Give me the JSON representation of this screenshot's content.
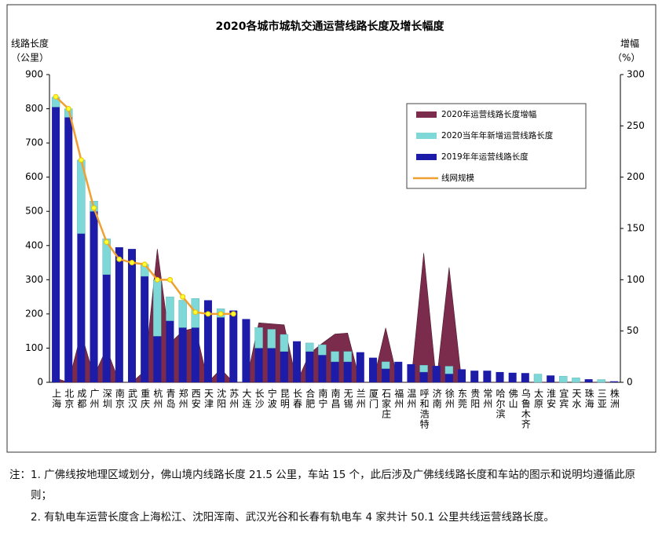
{
  "chart_data": {
    "type": "bar",
    "title": "2020各城市城轨交通运营线路长度及增长幅度",
    "ylabel": [
      "线路长度",
      "（公里）"
    ],
    "y2label": [
      "增幅",
      "（%）"
    ],
    "categories": [
      "上海",
      "北京",
      "成都",
      "广州",
      "深圳",
      "南京",
      "武汉",
      "重庆",
      "杭州",
      "青岛",
      "郑州",
      "西安",
      "天津",
      "沈阳",
      "苏州",
      "大连",
      "长沙",
      "宁波",
      "昆明",
      "长春",
      "合肥",
      "南宁",
      "南昌",
      "无锡",
      "兰州",
      "厦门",
      "石家庄",
      "福州",
      "温州",
      "呼和浩特",
      "济南",
      "徐州",
      "东莞",
      "贵阳",
      "常州",
      "哈尔滨",
      "佛山",
      "乌鲁木齐",
      "太原",
      "淮安",
      "宜宾",
      "天水",
      "珠海",
      "三亚",
      "株洲"
    ],
    "ylim": [
      0,
      900
    ],
    "yticks": [
      0,
      100,
      200,
      300,
      400,
      500,
      600,
      700,
      800,
      900
    ],
    "y2lim": [
      0,
      300
    ],
    "y2ticks": [
      0,
      50,
      100,
      150,
      200,
      250,
      300
    ],
    "series": [
      {
        "name": "2020年运营线路长度增幅",
        "type": "area",
        "axis": "y2",
        "color": "#7b2b4c",
        "values": [
          4,
          0,
          48,
          6,
          33,
          0,
          0,
          11,
          130,
          38,
          50,
          53,
          0,
          13,
          0,
          0,
          58,
          57,
          56,
          0,
          28,
          38,
          47,
          48,
          0,
          0,
          53,
          0,
          0,
          126,
          0,
          112,
          0,
          0,
          0,
          0,
          0,
          0,
          0,
          0,
          0,
          0,
          0,
          0,
          0
        ]
      },
      {
        "name": "2020当年年新增运营线路长度",
        "type": "stack",
        "color": "#7fd8d8",
        "values": [
          29,
          25,
          215,
          30,
          105,
          0,
          0,
          35,
          165,
          70,
          80,
          85,
          0,
          25,
          0,
          0,
          60,
          55,
          50,
          0,
          25,
          30,
          30,
          30,
          0,
          0,
          20,
          0,
          0,
          20,
          0,
          22,
          0,
          0,
          0,
          0,
          0,
          0,
          24,
          0,
          18,
          13,
          0,
          8,
          0
        ]
      },
      {
        "name": "2019年年运营线路长度",
        "type": "bar",
        "color": "#1c1ca8",
        "values": [
          805,
          775,
          435,
          500,
          315,
          395,
          390,
          310,
          135,
          180,
          160,
          160,
          240,
          190,
          210,
          185,
          100,
          100,
          90,
          120,
          90,
          80,
          60,
          60,
          88,
          72,
          40,
          60,
          53,
          30,
          48,
          25,
          38,
          34,
          34,
          30,
          28,
          27,
          0,
          20,
          0,
          0,
          9,
          0,
          3
        ]
      },
      {
        "name": "线网规模",
        "type": "line",
        "color": "#f0a030",
        "values": [
          835,
          800,
          650,
          510,
          410,
          360,
          350,
          345,
          300,
          300,
          250,
          205,
          200,
          200,
          200,
          null,
          null,
          null,
          null,
          null,
          null,
          null,
          null,
          null,
          null,
          null,
          null,
          null,
          null,
          null,
          null,
          null,
          null,
          null,
          null,
          null,
          null,
          null,
          null,
          null,
          null,
          null,
          null,
          null,
          null
        ]
      }
    ]
  },
  "notes_label": "注：",
  "notes": [
    "1. 广佛线按地理区域划分，佛山境内线路长度 21.5 公里，车站 15 个，此后涉及广佛线线路长度和车站的图示和说明均遵循此原则；",
    "2. 有轨电车运营长度含上海松江、沈阳浑南、武汉光谷和长春有轨电车 4 家共计 50.1 公里共线运营线路长度。"
  ]
}
